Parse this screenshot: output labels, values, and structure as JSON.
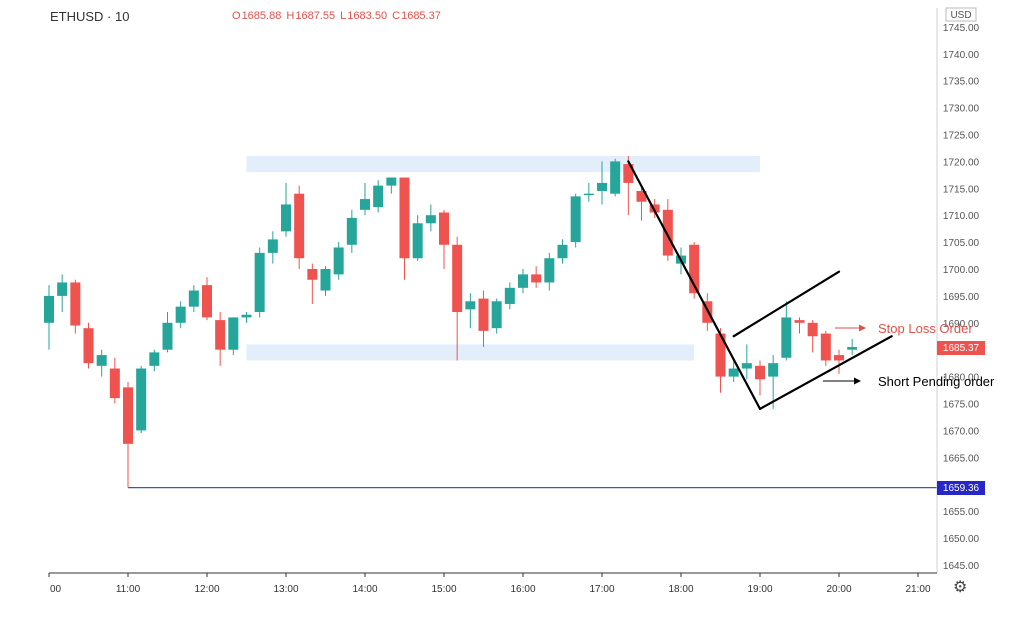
{
  "header": {
    "symbol": "ETHUSD · 10",
    "ohlc": [
      {
        "key": "O",
        "value": "1685.88"
      },
      {
        "key": "H",
        "value": "1687.55"
      },
      {
        "key": "L",
        "value": "1683.50"
      },
      {
        "key": "C",
        "value": "1685.37"
      }
    ]
  },
  "price_axis": {
    "currency": "USD",
    "current_price_label": "1685.37",
    "low_label": "1659.36"
  },
  "annotations": {
    "stop_loss": "Stop Loss Order",
    "short_pending": "Short Pending order"
  },
  "colors": {
    "up": "#26a69a",
    "down": "#ef5350",
    "zone": "#e3eefb",
    "low_line": "#3d5aa8",
    "current_price_bg": "#ef5350",
    "low_price_bg": "#2626c9",
    "stop_loss_text": "#e0524b",
    "short_pending_text": "#000000"
  },
  "chart_data": {
    "type": "candlestick",
    "symbol": "ETHUSD",
    "interval": "10",
    "ylim": [
      1643,
      1747
    ],
    "y_ticks": [
      1645,
      1650,
      1655,
      1660,
      1665,
      1670,
      1675,
      1680,
      1685,
      1690,
      1695,
      1700,
      1705,
      1710,
      1715,
      1720,
      1725,
      1730,
      1735,
      1740,
      1745
    ],
    "x_tick_labels": [
      "00",
      "11:00",
      "12:00",
      "13:00",
      "14:00",
      "15:00",
      "16:00",
      "17:00",
      "18:00",
      "19:00",
      "20:00",
      "21:00"
    ],
    "candles": [
      {
        "t": "10:00",
        "o": 1690.0,
        "h": 1697.0,
        "l": 1685.0,
        "c": 1695.0
      },
      {
        "t": "10:10",
        "o": 1695.0,
        "h": 1699.0,
        "l": 1692.0,
        "c": 1697.5
      },
      {
        "t": "10:20",
        "o": 1697.5,
        "h": 1698.0,
        "l": 1688.0,
        "c": 1689.5
      },
      {
        "t": "10:30",
        "o": 1689.0,
        "h": 1690.0,
        "l": 1681.5,
        "c": 1682.5
      },
      {
        "t": "10:40",
        "o": 1682.0,
        "h": 1685.0,
        "l": 1680.0,
        "c": 1684.0
      },
      {
        "t": "10:50",
        "o": 1681.5,
        "h": 1683.5,
        "l": 1675.0,
        "c": 1676.0
      },
      {
        "t": "11:00",
        "o": 1678.0,
        "h": 1679.0,
        "l": 1659.36,
        "c": 1667.5
      },
      {
        "t": "11:10",
        "o": 1670.0,
        "h": 1682.0,
        "l": 1669.5,
        "c": 1681.5
      },
      {
        "t": "11:20",
        "o": 1682.0,
        "h": 1685.0,
        "l": 1681.0,
        "c": 1684.5
      },
      {
        "t": "11:30",
        "o": 1685.0,
        "h": 1692.0,
        "l": 1684.5,
        "c": 1690.0
      },
      {
        "t": "11:40",
        "o": 1690.0,
        "h": 1694.0,
        "l": 1689.0,
        "c": 1693.0
      },
      {
        "t": "11:50",
        "o": 1693.0,
        "h": 1697.0,
        "l": 1692.0,
        "c": 1696.0
      },
      {
        "t": "12:00",
        "o": 1697.0,
        "h": 1698.5,
        "l": 1690.5,
        "c": 1691.0
      },
      {
        "t": "12:10",
        "o": 1690.5,
        "h": 1692.0,
        "l": 1682.0,
        "c": 1685.0
      },
      {
        "t": "12:20",
        "o": 1685.0,
        "h": 1691.0,
        "l": 1684.0,
        "c": 1691.0
      },
      {
        "t": "12:30",
        "o": 1691.0,
        "h": 1692.0,
        "l": 1690.0,
        "c": 1691.5
      },
      {
        "t": "12:40",
        "o": 1692.0,
        "h": 1704.0,
        "l": 1691.0,
        "c": 1703.0
      },
      {
        "t": "12:50",
        "o": 1703.0,
        "h": 1707.0,
        "l": 1701.0,
        "c": 1705.5
      },
      {
        "t": "13:00",
        "o": 1707.0,
        "h": 1716.0,
        "l": 1706.0,
        "c": 1712.0
      },
      {
        "t": "13:10",
        "o": 1714.0,
        "h": 1715.5,
        "l": 1700.0,
        "c": 1702.0
      },
      {
        "t": "13:20",
        "o": 1700.0,
        "h": 1701.0,
        "l": 1693.5,
        "c": 1698.0
      },
      {
        "t": "13:30",
        "o": 1696.0,
        "h": 1700.5,
        "l": 1695.0,
        "c": 1700.0
      },
      {
        "t": "13:40",
        "o": 1699.0,
        "h": 1705.0,
        "l": 1698.0,
        "c": 1704.0
      },
      {
        "t": "13:50",
        "o": 1704.5,
        "h": 1711.0,
        "l": 1703.0,
        "c": 1709.5
      },
      {
        "t": "14:00",
        "o": 1711.0,
        "h": 1716.0,
        "l": 1710.0,
        "c": 1713.0
      },
      {
        "t": "14:10",
        "o": 1711.5,
        "h": 1716.5,
        "l": 1710.5,
        "c": 1715.5
      },
      {
        "t": "14:20",
        "o": 1715.5,
        "h": 1717.0,
        "l": 1714.0,
        "c": 1717.0
      },
      {
        "t": "14:30",
        "o": 1717.0,
        "h": 1717.0,
        "l": 1698.0,
        "c": 1702.0
      },
      {
        "t": "14:40",
        "o": 1702.0,
        "h": 1710.0,
        "l": 1701.5,
        "c": 1708.5
      },
      {
        "t": "14:50",
        "o": 1708.5,
        "h": 1712.0,
        "l": 1707.0,
        "c": 1710.0
      },
      {
        "t": "15:00",
        "o": 1710.5,
        "h": 1711.0,
        "l": 1700.0,
        "c": 1704.5
      },
      {
        "t": "15:10",
        "o": 1704.5,
        "h": 1706.0,
        "l": 1683.0,
        "c": 1692.0
      },
      {
        "t": "15:20",
        "o": 1692.5,
        "h": 1695.5,
        "l": 1689.0,
        "c": 1694.0
      },
      {
        "t": "15:30",
        "o": 1694.5,
        "h": 1696.0,
        "l": 1685.5,
        "c": 1688.5
      },
      {
        "t": "15:40",
        "o": 1689.0,
        "h": 1694.5,
        "l": 1688.0,
        "c": 1694.0
      },
      {
        "t": "15:50",
        "o": 1693.5,
        "h": 1697.5,
        "l": 1692.5,
        "c": 1696.5
      },
      {
        "t": "16:00",
        "o": 1696.5,
        "h": 1700.0,
        "l": 1695.5,
        "c": 1699.0
      },
      {
        "t": "16:10",
        "o": 1699.0,
        "h": 1700.5,
        "l": 1696.5,
        "c": 1697.5
      },
      {
        "t": "16:20",
        "o": 1697.5,
        "h": 1703.0,
        "l": 1696.0,
        "c": 1702.0
      },
      {
        "t": "16:30",
        "o": 1702.0,
        "h": 1705.5,
        "l": 1701.0,
        "c": 1704.5
      },
      {
        "t": "16:40",
        "o": 1705.0,
        "h": 1714.0,
        "l": 1704.0,
        "c": 1713.5
      },
      {
        "t": "16:50",
        "o": 1714.0,
        "h": 1716.0,
        "l": 1712.5,
        "c": 1714.0
      },
      {
        "t": "17:00",
        "o": 1714.5,
        "h": 1720.0,
        "l": 1712.0,
        "c": 1716.0
      },
      {
        "t": "17:10",
        "o": 1714.0,
        "h": 1720.5,
        "l": 1713.5,
        "c": 1720.0
      },
      {
        "t": "17:20",
        "o": 1719.5,
        "h": 1721.0,
        "l": 1710.0,
        "c": 1716.0
      },
      {
        "t": "17:30",
        "o": 1714.5,
        "h": 1715.0,
        "l": 1709.0,
        "c": 1712.5
      },
      {
        "t": "17:40",
        "o": 1712.0,
        "h": 1713.0,
        "l": 1709.5,
        "c": 1710.5
      },
      {
        "t": "17:50",
        "o": 1711.0,
        "h": 1713.0,
        "l": 1701.5,
        "c": 1702.5
      },
      {
        "t": "18:00",
        "o": 1701.0,
        "h": 1704.0,
        "l": 1699.0,
        "c": 1702.5
      },
      {
        "t": "18:10",
        "o": 1704.5,
        "h": 1705.0,
        "l": 1694.5,
        "c": 1695.5
      },
      {
        "t": "18:20",
        "o": 1694.0,
        "h": 1695.5,
        "l": 1688.5,
        "c": 1690.0
      },
      {
        "t": "18:30",
        "o": 1688.0,
        "h": 1689.0,
        "l": 1677.0,
        "c": 1680.0
      },
      {
        "t": "18:40",
        "o": 1680.0,
        "h": 1683.0,
        "l": 1679.0,
        "c": 1681.5
      },
      {
        "t": "18:50",
        "o": 1681.5,
        "h": 1686.0,
        "l": 1679.5,
        "c": 1682.5
      },
      {
        "t": "19:00",
        "o": 1682.0,
        "h": 1683.0,
        "l": 1676.5,
        "c": 1679.5
      },
      {
        "t": "19:10",
        "o": 1680.0,
        "h": 1684.0,
        "l": 1674.0,
        "c": 1682.5
      },
      {
        "t": "19:20",
        "o": 1683.5,
        "h": 1694.0,
        "l": 1683.0,
        "c": 1691.0
      },
      {
        "t": "19:30",
        "o": 1690.5,
        "h": 1691.0,
        "l": 1688.0,
        "c": 1690.0
      },
      {
        "t": "19:40",
        "o": 1690.0,
        "h": 1690.5,
        "l": 1684.5,
        "c": 1687.5
      },
      {
        "t": "19:50",
        "o": 1688.0,
        "h": 1688.5,
        "l": 1682.0,
        "c": 1683.0
      },
      {
        "t": "20:00",
        "o": 1684.0,
        "h": 1685.0,
        "l": 1680.5,
        "c": 1683.0
      },
      {
        "t": "20:10",
        "o": 1685.0,
        "h": 1687.0,
        "l": 1684.0,
        "c": 1685.5
      }
    ],
    "zones": [
      {
        "name": "resistance",
        "from_t": "12:30",
        "to_t": "19:00",
        "low": 1718.0,
        "high": 1721.0
      },
      {
        "name": "support",
        "from_t": "12:30",
        "to_t": "18:10",
        "low": 1683.0,
        "high": 1686.0
      }
    ],
    "low_line": {
      "price": 1659.36,
      "from_t": "11:00"
    },
    "drawings": [
      {
        "name": "impulse-leg",
        "points": [
          [
            "17:20",
            1720.0
          ],
          [
            "19:00",
            1674.0
          ]
        ]
      },
      {
        "name": "flag-lower",
        "points": [
          [
            "19:00",
            1674.0
          ],
          [
            "20:40",
            1687.5
          ]
        ]
      },
      {
        "name": "flag-upper",
        "points": [
          [
            "18:40",
            1687.5
          ],
          [
            "20:00",
            1699.5
          ]
        ]
      }
    ]
  }
}
